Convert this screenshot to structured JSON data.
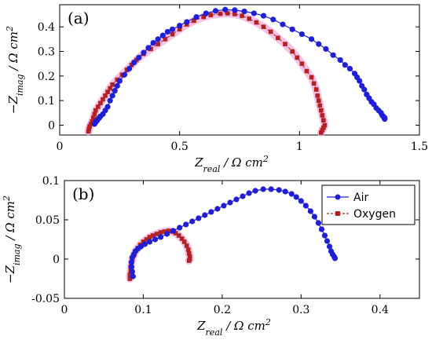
{
  "colors": {
    "air": "#1f1fd6",
    "oxygen": "#b22222",
    "oxygen_glow": "#f4b3e0"
  },
  "chart_data": [
    {
      "type": "scatter",
      "panel_label": "(a)",
      "xlabel": "Z_real / Ω cm^2",
      "ylabel": "−Z_imag / Ω cm^2",
      "xlim": [
        0,
        1.5
      ],
      "ylim": [
        -0.04,
        0.49
      ],
      "xticks": [
        0,
        0.5,
        1,
        1.5
      ],
      "xtick_labels": [
        "0",
        "0.5",
        "1",
        "1.5"
      ],
      "yticks": [
        0,
        0.1,
        0.2,
        0.3,
        0.4
      ],
      "ytick_labels": [
        "0",
        "0.1",
        "0.2",
        "0.3",
        "0.4"
      ],
      "grid": false,
      "series": [
        {
          "name": "Air",
          "marker": "circle",
          "x": [
            0.145,
            0.15,
            0.155,
            0.16,
            0.165,
            0.17,
            0.18,
            0.19,
            0.2,
            0.21,
            0.22,
            0.23,
            0.24,
            0.25,
            0.27,
            0.29,
            0.31,
            0.33,
            0.35,
            0.37,
            0.39,
            0.41,
            0.43,
            0.45,
            0.47,
            0.5,
            0.53,
            0.57,
            0.61,
            0.65,
            0.69,
            0.73,
            0.77,
            0.81,
            0.85,
            0.89,
            0.93,
            0.97,
            1.01,
            1.05,
            1.08,
            1.11,
            1.14,
            1.17,
            1.19,
            1.21,
            1.23,
            1.24,
            1.25,
            1.26,
            1.27,
            1.28,
            1.29,
            1.3,
            1.31,
            1.32,
            1.33,
            1.34,
            1.345,
            1.35,
            1.355,
            1.355
          ],
          "y": [
            0.005,
            0.012,
            0.018,
            0.025,
            0.03,
            0.036,
            0.045,
            0.06,
            0.075,
            0.1,
            0.12,
            0.14,
            0.16,
            0.18,
            0.205,
            0.23,
            0.255,
            0.275,
            0.295,
            0.315,
            0.335,
            0.35,
            0.365,
            0.38,
            0.39,
            0.405,
            0.42,
            0.44,
            0.455,
            0.465,
            0.47,
            0.468,
            0.463,
            0.455,
            0.445,
            0.43,
            0.41,
            0.39,
            0.37,
            0.35,
            0.33,
            0.31,
            0.285,
            0.265,
            0.245,
            0.23,
            0.21,
            0.195,
            0.18,
            0.16,
            0.145,
            0.125,
            0.11,
            0.095,
            0.085,
            0.07,
            0.06,
            0.05,
            0.04,
            0.035,
            0.03,
            0.025
          ]
        },
        {
          "name": "Oxygen",
          "marker": "square",
          "x": [
            0.12,
            0.122,
            0.125,
            0.13,
            0.135,
            0.14,
            0.145,
            0.15,
            0.16,
            0.17,
            0.18,
            0.19,
            0.2,
            0.21,
            0.22,
            0.24,
            0.26,
            0.28,
            0.3,
            0.32,
            0.35,
            0.38,
            0.41,
            0.44,
            0.47,
            0.5,
            0.53,
            0.56,
            0.6,
            0.63,
            0.67,
            0.7,
            0.73,
            0.76,
            0.79,
            0.82,
            0.85,
            0.88,
            0.91,
            0.94,
            0.97,
            0.99,
            1.01,
            1.03,
            1.05,
            1.06,
            1.07,
            1.075,
            1.08,
            1.085,
            1.09,
            1.095,
            1.1,
            1.105,
            1.1,
            1.095,
            1.09
          ],
          "y": [
            -0.025,
            -0.015,
            -0.005,
            0.005,
            0.015,
            0.03,
            0.045,
            0.06,
            0.075,
            0.09,
            0.105,
            0.12,
            0.135,
            0.15,
            0.165,
            0.185,
            0.205,
            0.225,
            0.245,
            0.265,
            0.29,
            0.31,
            0.33,
            0.35,
            0.37,
            0.39,
            0.41,
            0.425,
            0.44,
            0.448,
            0.453,
            0.455,
            0.452,
            0.445,
            0.433,
            0.418,
            0.4,
            0.38,
            0.355,
            0.33,
            0.3,
            0.275,
            0.25,
            0.22,
            0.195,
            0.17,
            0.145,
            0.12,
            0.1,
            0.08,
            0.06,
            0.04,
            0.02,
            0.0,
            -0.01,
            -0.02,
            -0.03
          ]
        }
      ]
    },
    {
      "type": "scatter",
      "panel_label": "(b)",
      "xlabel": "Z_real / Ω cm^2",
      "ylabel": "−Z_imag / Ω cm^2",
      "xlim": [
        0,
        0.45
      ],
      "ylim": [
        -0.05,
        0.1
      ],
      "xticks": [
        0,
        0.1,
        0.2,
        0.3,
        0.4
      ],
      "xtick_labels": [
        "0",
        "0.1",
        "0.2",
        "0.3",
        "0.4"
      ],
      "yticks": [
        -0.05,
        0,
        0.05,
        0.1
      ],
      "ytick_labels": [
        "-0.05",
        "0",
        "0.05",
        "0.1"
      ],
      "grid": false,
      "legend": {
        "placement": "top-right",
        "entries": [
          "Air",
          "Oxygen"
        ]
      },
      "series": [
        {
          "name": "Air",
          "marker": "circle",
          "x": [
            0.087,
            0.086,
            0.085,
            0.085,
            0.086,
            0.088,
            0.09,
            0.093,
            0.097,
            0.102,
            0.108,
            0.115,
            0.122,
            0.13,
            0.138,
            0.146,
            0.154,
            0.162,
            0.17,
            0.178,
            0.186,
            0.194,
            0.202,
            0.21,
            0.218,
            0.226,
            0.234,
            0.242,
            0.252,
            0.262,
            0.272,
            0.28,
            0.288,
            0.294,
            0.3,
            0.306,
            0.312,
            0.317,
            0.322,
            0.326,
            0.33,
            0.333,
            0.336,
            0.338,
            0.34,
            0.342,
            0.343
          ],
          "y": [
            -0.022,
            -0.016,
            -0.01,
            -0.004,
            0.002,
            0.006,
            0.01,
            0.013,
            0.016,
            0.019,
            0.022,
            0.025,
            0.028,
            0.032,
            0.036,
            0.04,
            0.044,
            0.048,
            0.052,
            0.056,
            0.06,
            0.064,
            0.068,
            0.072,
            0.076,
            0.08,
            0.084,
            0.087,
            0.089,
            0.089,
            0.088,
            0.086,
            0.083,
            0.079,
            0.074,
            0.068,
            0.061,
            0.054,
            0.046,
            0.038,
            0.03,
            0.023,
            0.016,
            0.01,
            0.006,
            0.003,
            0.001
          ]
        },
        {
          "name": "Oxygen",
          "marker": "square",
          "x": [
            0.083,
            0.083,
            0.084,
            0.084,
            0.085,
            0.086,
            0.088,
            0.09,
            0.093,
            0.096,
            0.1,
            0.104,
            0.108,
            0.112,
            0.117,
            0.122,
            0.127,
            0.132,
            0.137,
            0.141,
            0.145,
            0.149,
            0.152,
            0.155,
            0.157,
            0.158,
            0.159,
            0.159,
            0.158
          ],
          "y": [
            -0.025,
            -0.02,
            -0.015,
            -0.01,
            -0.005,
            0.0,
            0.005,
            0.01,
            0.014,
            0.018,
            0.022,
            0.025,
            0.028,
            0.03,
            0.032,
            0.034,
            0.035,
            0.036,
            0.035,
            0.033,
            0.03,
            0.026,
            0.022,
            0.017,
            0.012,
            0.007,
            0.003,
            0.0,
            -0.002
          ]
        }
      ]
    }
  ]
}
